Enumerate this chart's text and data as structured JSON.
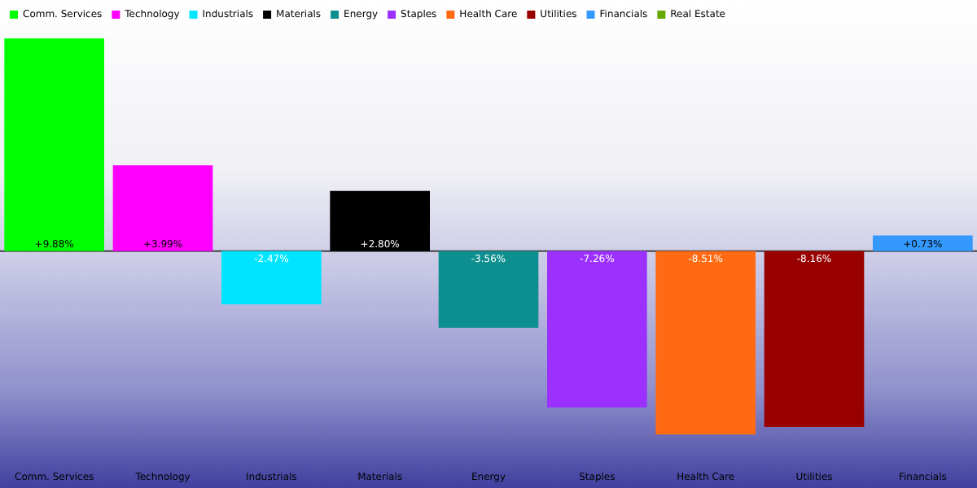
{
  "chart_data": {
    "type": "bar",
    "categories": [
      "Comm. Services",
      "Technology",
      "Industrials",
      "Materials",
      "Energy",
      "Staples",
      "Health Care",
      "Utilities",
      "Financials"
    ],
    "series": [
      {
        "name": "Comm. Services",
        "color": "#00ff00",
        "values": [
          9.88,
          null,
          null,
          null,
          null,
          null,
          null,
          null,
          null
        ],
        "value_labels": [
          "+9.88%",
          null,
          null,
          null,
          null,
          null,
          null,
          null,
          null
        ]
      },
      {
        "name": "Technology",
        "color": "#ff00ff",
        "values": [
          null,
          3.99,
          null,
          null,
          null,
          null,
          null,
          null,
          null
        ],
        "value_labels": [
          null,
          "+3.99%",
          null,
          null,
          null,
          null,
          null,
          null,
          null
        ]
      },
      {
        "name": "Industrials",
        "color": "#00e5ff",
        "values": [
          null,
          null,
          -2.47,
          null,
          null,
          null,
          null,
          null,
          null
        ],
        "value_labels": [
          null,
          null,
          "-2.47%",
          null,
          null,
          null,
          null,
          null,
          null
        ]
      },
      {
        "name": "Materials",
        "color": "#000000",
        "values": [
          null,
          null,
          null,
          2.8,
          null,
          null,
          null,
          null,
          null
        ],
        "value_labels": [
          null,
          null,
          null,
          "+2.80%",
          null,
          null,
          null,
          null,
          null
        ]
      },
      {
        "name": "Energy",
        "color": "#0e8f8f",
        "values": [
          null,
          null,
          null,
          null,
          -3.56,
          null,
          null,
          null,
          null
        ],
        "value_labels": [
          null,
          null,
          null,
          null,
          "-3.56%",
          null,
          null,
          null,
          null
        ]
      },
      {
        "name": "Staples",
        "color": "#9b30ff",
        "values": [
          null,
          null,
          null,
          null,
          null,
          -7.26,
          null,
          null,
          null
        ],
        "value_labels": [
          null,
          null,
          null,
          null,
          null,
          "-7.26%",
          null,
          null,
          null
        ]
      },
      {
        "name": "Health Care",
        "color": "#ff6a13",
        "values": [
          null,
          null,
          null,
          null,
          null,
          null,
          -8.51,
          null,
          null
        ],
        "value_labels": [
          null,
          null,
          null,
          null,
          null,
          null,
          "-8.51%",
          null,
          null
        ]
      },
      {
        "name": "Utilities",
        "color": "#990000",
        "values": [
          null,
          null,
          null,
          null,
          null,
          null,
          null,
          -8.16,
          null
        ],
        "value_labels": [
          null,
          null,
          null,
          null,
          null,
          null,
          null,
          "-8.16%",
          null
        ]
      },
      {
        "name": "Financials",
        "color": "#3399ff",
        "values": [
          null,
          null,
          null,
          null,
          null,
          null,
          null,
          null,
          0.73
        ],
        "value_labels": [
          null,
          null,
          null,
          null,
          null,
          null,
          null,
          null,
          "+0.73%"
        ]
      },
      {
        "name": "Real Estate",
        "color": "#66aa00",
        "values": [
          null,
          null,
          null,
          null,
          null,
          null,
          null,
          null,
          null
        ]
      }
    ],
    "legend": "top left",
    "grid": false,
    "tick_labels": "x"
  }
}
